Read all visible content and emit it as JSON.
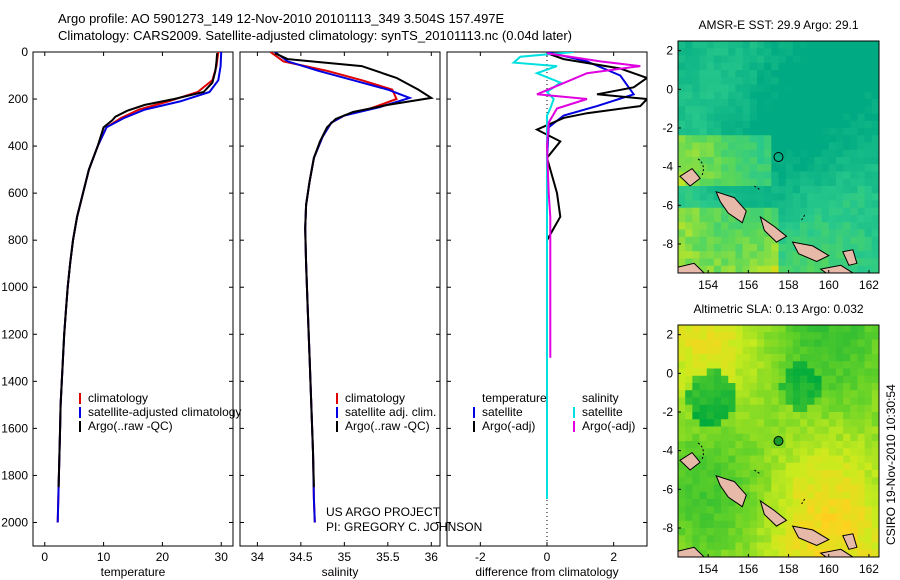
{
  "header": {
    "line1": "Argo profile: AO 5901273_149 12-Nov-2010 20101113_349 3.504S 157.497E",
    "line2": "Climatology: CARS2009. Satellite-adjusted climatology: synTS_20101113.nc (0.04d later)"
  },
  "project": {
    "line1": "US ARGO PROJECT",
    "line2": "PI: GREGORY C. JOHNSON"
  },
  "stamp": "CSIRO 19-Nov-2010 10:30:54",
  "colors": {
    "climatology": "#e00000",
    "satellite": "#0000e0",
    "argo": "#000000",
    "sal_satellite": "#00e0e0",
    "sal_argo": "#e000e0"
  },
  "chart_data": [
    {
      "type": "line",
      "id": "temperature",
      "xlabel": "temperature",
      "xlim": [
        -2,
        32
      ],
      "ylim": [
        0,
        2100
      ],
      "y_reversed": true,
      "xticks": [
        0,
        10,
        20,
        30
      ],
      "yticks": [
        0,
        200,
        400,
        600,
        800,
        1000,
        1200,
        1400,
        1600,
        1800,
        2000
      ],
      "legend": [
        "climatology",
        "satellite-adjusted climatology",
        "Argo(..raw -QC)"
      ],
      "series": [
        {
          "name": "climatology",
          "color": "#e00000",
          "points": [
            [
              29.5,
              0
            ],
            [
              29.2,
              60
            ],
            [
              28.5,
              120
            ],
            [
              26,
              170
            ],
            [
              21,
              210
            ],
            [
              16,
              245
            ],
            [
              13,
              280
            ],
            [
              10.5,
              320
            ],
            [
              9,
              400
            ],
            [
              7.5,
              500
            ],
            [
              6.5,
              600
            ],
            [
              5.5,
              700
            ],
            [
              4.8,
              800
            ],
            [
              4.3,
              900
            ],
            [
              3.9,
              1000
            ],
            [
              3.6,
              1100
            ],
            [
              3.3,
              1200
            ],
            [
              3.1,
              1300
            ],
            [
              2.9,
              1400
            ],
            [
              2.7,
              1500
            ],
            [
              2.6,
              1600
            ],
            [
              2.5,
              1700
            ],
            [
              2.4,
              1800
            ],
            [
              2.3,
              1900
            ],
            [
              2.2,
              2000
            ]
          ]
        },
        {
          "name": "satellite-adjusted climatology",
          "color": "#0000e0",
          "points": [
            [
              30,
              0
            ],
            [
              29.9,
              60
            ],
            [
              29.5,
              120
            ],
            [
              28,
              170
            ],
            [
              23,
              210
            ],
            [
              17,
              245
            ],
            [
              13.5,
              280
            ],
            [
              10.5,
              320
            ],
            [
              9,
              400
            ],
            [
              7.5,
              500
            ],
            [
              6.5,
              600
            ],
            [
              5.5,
              700
            ],
            [
              4.8,
              800
            ],
            [
              4.3,
              900
            ],
            [
              3.9,
              1000
            ],
            [
              3.6,
              1100
            ],
            [
              3.3,
              1200
            ],
            [
              3.1,
              1300
            ],
            [
              2.9,
              1400
            ],
            [
              2.7,
              1500
            ],
            [
              2.6,
              1600
            ],
            [
              2.5,
              1700
            ],
            [
              2.4,
              1800
            ],
            [
              2.3,
              1900
            ],
            [
              2.2,
              2000
            ]
          ]
        },
        {
          "name": "Argo(..raw -QC)",
          "color": "#000000",
          "points": [
            [
              29.3,
              5
            ],
            [
              29.2,
              40
            ],
            [
              29,
              80
            ],
            [
              28.5,
              130
            ],
            [
              27,
              170
            ],
            [
              22,
              200
            ],
            [
              17,
              225
            ],
            [
              14,
              250
            ],
            [
              12,
              275
            ],
            [
              11.5,
              290
            ],
            [
              10,
              320
            ],
            [
              9,
              400
            ],
            [
              7.5,
              500
            ],
            [
              6.5,
              600
            ],
            [
              5.5,
              700
            ],
            [
              4.8,
              800
            ],
            [
              4.3,
              900
            ],
            [
              3.9,
              1000
            ],
            [
              3.6,
              1100
            ],
            [
              3.3,
              1200
            ],
            [
              3.1,
              1300
            ],
            [
              2.9,
              1400
            ],
            [
              2.7,
              1500
            ],
            [
              2.6,
              1600
            ],
            [
              2.5,
              1700
            ],
            [
              2.4,
              1800
            ],
            [
              2.35,
              1850
            ]
          ]
        }
      ]
    },
    {
      "type": "line",
      "id": "salinity",
      "xlabel": "salinity",
      "xlim": [
        33.8,
        36.1
      ],
      "ylim": [
        0,
        2100
      ],
      "y_reversed": true,
      "xticks": [
        34,
        34.5,
        35,
        35.5,
        36
      ],
      "xticklabels": [
        "34",
        "34.5",
        "35",
        "35.5",
        "36"
      ],
      "legend": [
        "climatology",
        "satellite adj. clim.",
        "Argo(..raw -QC)"
      ],
      "series": [
        {
          "name": "climatology",
          "color": "#e00000",
          "points": [
            [
              34.15,
              0
            ],
            [
              34.3,
              40
            ],
            [
              34.8,
              80
            ],
            [
              35.2,
              120
            ],
            [
              35.55,
              160
            ],
            [
              35.6,
              200
            ],
            [
              35.3,
              240
            ],
            [
              35.0,
              270
            ],
            [
              34.85,
              300
            ],
            [
              34.75,
              360
            ],
            [
              34.65,
              450
            ],
            [
              34.6,
              550
            ],
            [
              34.56,
              650
            ],
            [
              34.55,
              750
            ],
            [
              34.56,
              900
            ],
            [
              34.58,
              1100
            ],
            [
              34.6,
              1300
            ],
            [
              34.62,
              1500
            ],
            [
              34.64,
              1700
            ],
            [
              34.65,
              1900
            ],
            [
              34.66,
              2000
            ]
          ]
        },
        {
          "name": "satellite adj. clim.",
          "color": "#0000e0",
          "points": [
            [
              34.2,
              0
            ],
            [
              34.35,
              40
            ],
            [
              34.7,
              80
            ],
            [
              35.1,
              120
            ],
            [
              35.5,
              160
            ],
            [
              35.75,
              195
            ],
            [
              35.4,
              235
            ],
            [
              35.0,
              270
            ],
            [
              34.85,
              300
            ],
            [
              34.75,
              360
            ],
            [
              34.65,
              450
            ],
            [
              34.6,
              550
            ],
            [
              34.56,
              650
            ],
            [
              34.55,
              750
            ],
            [
              34.56,
              900
            ],
            [
              34.58,
              1100
            ],
            [
              34.6,
              1300
            ],
            [
              34.62,
              1500
            ],
            [
              34.64,
              1700
            ],
            [
              34.65,
              1900
            ],
            [
              34.66,
              2000
            ]
          ]
        },
        {
          "name": "Argo(..raw -QC)",
          "color": "#000000",
          "points": [
            [
              34.2,
              5
            ],
            [
              34.35,
              30
            ],
            [
              35.2,
              60
            ],
            [
              35.6,
              110
            ],
            [
              35.85,
              160
            ],
            [
              36.0,
              195
            ],
            [
              35.5,
              225
            ],
            [
              35.1,
              255
            ],
            [
              34.9,
              285
            ],
            [
              34.8,
              320
            ],
            [
              34.72,
              380
            ],
            [
              34.65,
              450
            ],
            [
              34.6,
              550
            ],
            [
              34.56,
              650
            ],
            [
              34.55,
              750
            ],
            [
              34.56,
              900
            ],
            [
              34.58,
              1100
            ],
            [
              34.6,
              1300
            ],
            [
              34.62,
              1500
            ],
            [
              34.64,
              1700
            ],
            [
              34.65,
              1850
            ]
          ]
        }
      ]
    },
    {
      "type": "line",
      "id": "difference",
      "xlabel": "difference from climatology",
      "xlim": [
        -3,
        3
      ],
      "ylim": [
        0,
        2100
      ],
      "y_reversed": true,
      "xticks": [
        -2,
        0,
        2
      ],
      "legend_title_left": "temperature",
      "legend_title_right": "salinity",
      "legend": [
        "satellite",
        "Argo(-adj)",
        "satellite",
        "Argo(-adj)"
      ],
      "series": [
        {
          "name": "temperature satellite",
          "color": "#0000e0",
          "points": [
            [
              0,
              0
            ],
            [
              1.2,
              40
            ],
            [
              2.2,
              100
            ],
            [
              2.6,
              180
            ],
            [
              1.5,
              230
            ],
            [
              0.5,
              270
            ],
            [
              0.05,
              320
            ],
            [
              0,
              450
            ],
            [
              0,
              700
            ],
            [
              0,
              1000
            ],
            [
              0,
              1300
            ],
            [
              0,
              1600
            ],
            [
              0,
              1900
            ]
          ]
        },
        {
          "name": "temperature Argo(-adj)",
          "color": "#000000",
          "points": [
            [
              0,
              5
            ],
            [
              0.5,
              30
            ],
            [
              2.2,
              70
            ],
            [
              3,
              110
            ],
            [
              2.6,
              150
            ],
            [
              1.5,
              180
            ],
            [
              3,
              200
            ],
            [
              2.8,
              230
            ],
            [
              1.2,
              260
            ],
            [
              0.5,
              280
            ],
            [
              -0.3,
              330
            ],
            [
              0.4,
              380
            ],
            [
              0,
              450
            ],
            [
              0.3,
              600
            ],
            [
              0.4,
              700
            ],
            [
              0,
              800
            ],
            [
              0,
              1000
            ],
            [
              0,
              1300
            ],
            [
              0,
              1600
            ],
            [
              0,
              1850
            ]
          ]
        },
        {
          "name": "salinity satellite",
          "color": "#00e0e0",
          "points": [
            [
              0.8,
              0
            ],
            [
              -0.8,
              20
            ],
            [
              -1,
              45
            ],
            [
              0.3,
              60
            ],
            [
              -0.3,
              90
            ],
            [
              0.4,
              130
            ],
            [
              0,
              170
            ],
            [
              0.2,
              200
            ],
            [
              0.1,
              240
            ],
            [
              0,
              270
            ],
            [
              0,
              320
            ],
            [
              0,
              400
            ],
            [
              0,
              500
            ],
            [
              0,
              700
            ],
            [
              0,
              1000
            ],
            [
              0,
              1300
            ],
            [
              0,
              1600
            ],
            [
              0,
              1900
            ]
          ]
        },
        {
          "name": "salinity Argo(-adj)",
          "color": "#e000e0",
          "points": [
            [
              0,
              5
            ],
            [
              1.6,
              40
            ],
            [
              2.8,
              60
            ],
            [
              1.2,
              90
            ],
            [
              -0.3,
              180
            ],
            [
              1.2,
              200
            ],
            [
              0.3,
              240
            ],
            [
              0.05,
              300
            ],
            [
              0,
              400
            ],
            [
              0.05,
              600
            ],
            [
              0.1,
              700
            ],
            [
              0.1,
              800
            ],
            [
              0.1,
              1000
            ],
            [
              0.1,
              1200
            ],
            [
              0.1,
              1300
            ]
          ]
        }
      ]
    },
    {
      "type": "heatmap",
      "id": "sst-map",
      "title": "AMSR-E SST: 29.9 Argo: 29.1",
      "xticks": [
        154,
        156,
        158,
        160,
        162
      ],
      "yticks": [
        2,
        0,
        -2,
        -4,
        -6,
        -8
      ],
      "xlim": [
        152.5,
        162.5
      ],
      "ylim": [
        -9.5,
        2.5
      ],
      "marker": {
        "lon": 157.5,
        "lat": -3.5,
        "filled": false
      }
    },
    {
      "type": "heatmap",
      "id": "sla-map",
      "title": "Altimetric SLA: 0.13 Argo: 0.032",
      "xticks": [
        154,
        156,
        158,
        160,
        162
      ],
      "yticks": [
        2,
        0,
        -2,
        -4,
        -6,
        -8
      ],
      "xlim": [
        152.5,
        162.5
      ],
      "ylim": [
        -9.5,
        2.5
      ],
      "marker": {
        "lon": 157.5,
        "lat": -3.5,
        "filled": true
      }
    }
  ]
}
